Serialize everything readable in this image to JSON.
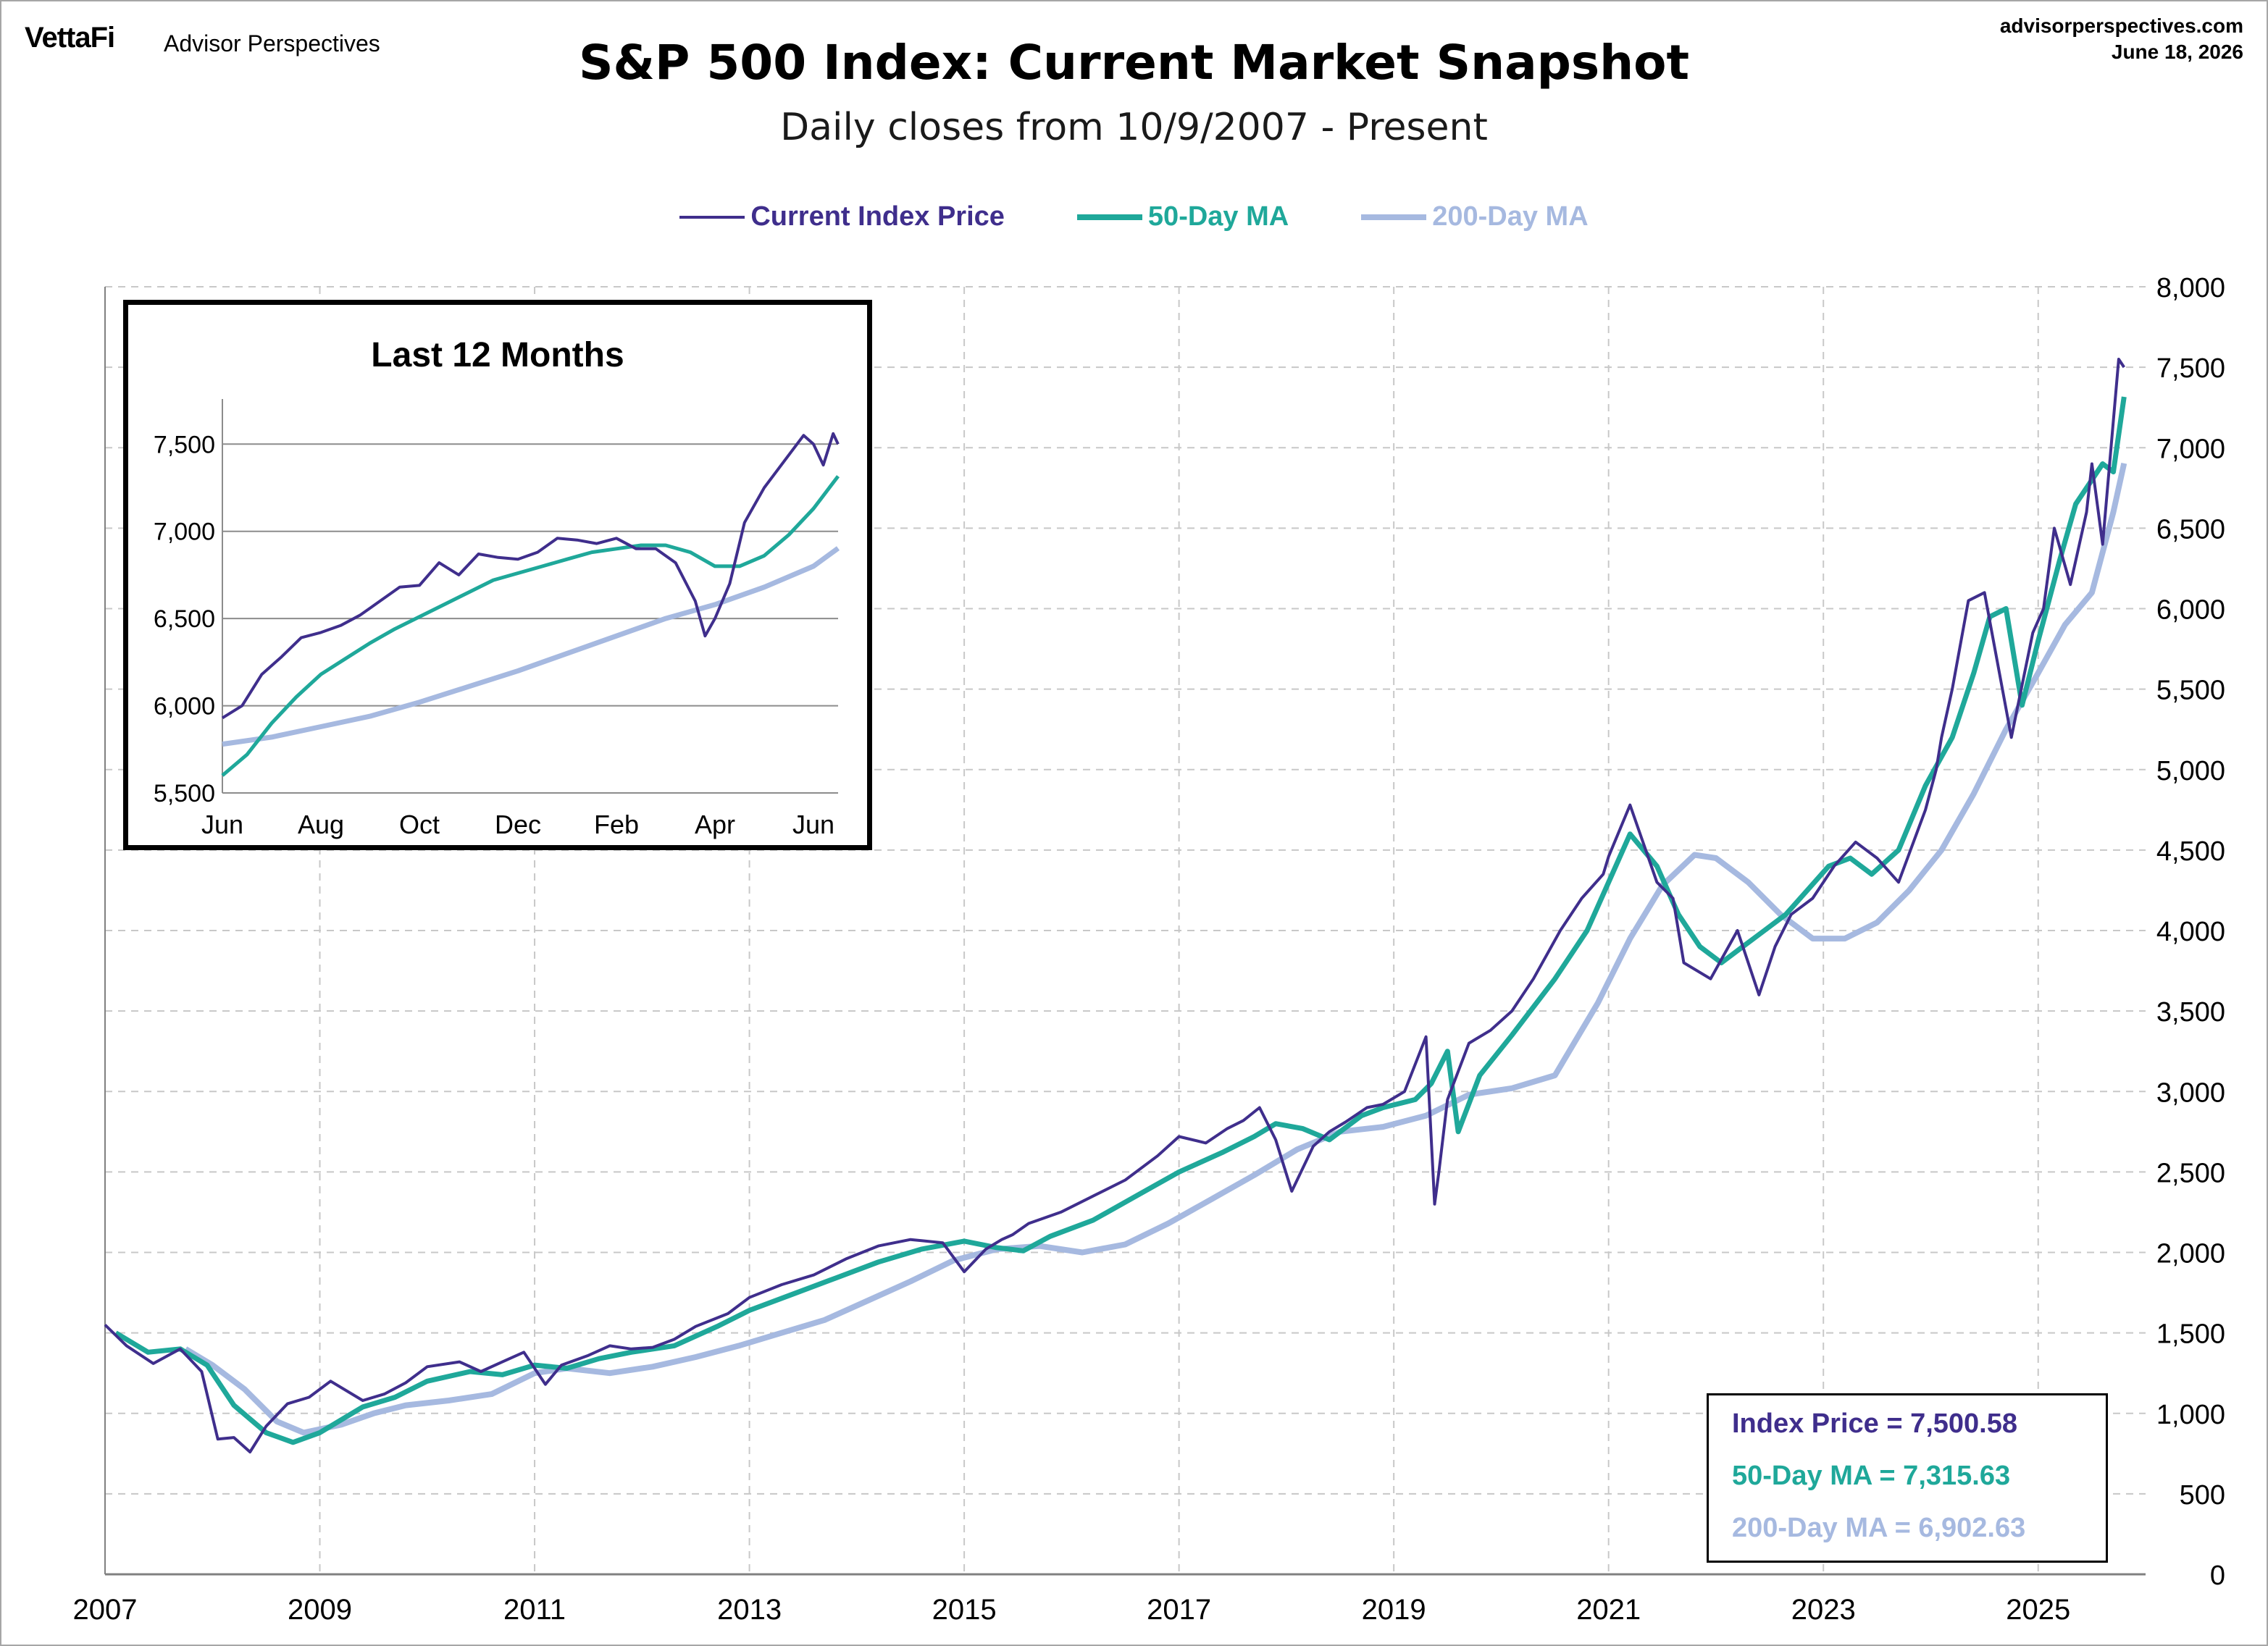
{
  "header": {
    "logo": "VettaFi",
    "tagline": "Advisor Perspectives",
    "site": "advisorperspectives.com",
    "date": "June 18, 2026",
    "title": "S&P 500 Index: Current Market Snapshot",
    "subtitle": "Daily closes from 10/9/2007 - Present"
  },
  "colors": {
    "price": "#3f2e8c",
    "ma50": "#1fa89a",
    "ma200": "#a6b9e0",
    "grid": "#c8c8c8",
    "text": "#000000"
  },
  "legend": [
    {
      "label": "Current Index Price",
      "color": "#3f2e8c"
    },
    {
      "label": "50-Day MA",
      "color": "#1fa89a"
    },
    {
      "label": "200-Day MA",
      "color": "#a6b9e0"
    }
  ],
  "values_box": {
    "price": "Index Price = 7,500.58",
    "ma50": "50-Day MA = 7,315.63",
    "ma200": "200-Day MA = 6,902.63"
  },
  "chart_data": [
    {
      "type": "line",
      "title": "S&P 500 Index: Current Market Snapshot",
      "subtitle": "Daily closes from 10/9/2007 - Present",
      "xlim": [
        2007.0,
        2026.0
      ],
      "ylim": [
        0,
        8000
      ],
      "x_ticks": [
        "2007",
        "2009",
        "2011",
        "2013",
        "2015",
        "2017",
        "2019",
        "2021",
        "2023",
        "2025"
      ],
      "y_ticks": [
        "0",
        "500",
        "1,000",
        "1,500",
        "2,000",
        "2,500",
        "3,000",
        "3,500",
        "4,000",
        "4,500",
        "5,000",
        "5,500",
        "6,000",
        "6,500",
        "7,000",
        "7,500",
        "8,000"
      ],
      "y_right_axis": true,
      "grid": "dashed vertical and horizontal",
      "series": [
        {
          "name": "Current Index Price",
          "x": [
            2007.0,
            2007.2,
            2007.45,
            2007.7,
            2007.9,
            2008.05,
            2008.2,
            2008.35,
            2008.5,
            2008.7,
            2008.9,
            2009.1,
            2009.4,
            2009.6,
            2009.8,
            2010.0,
            2010.3,
            2010.5,
            2010.7,
            2010.9,
            2011.1,
            2011.25,
            2011.5,
            2011.7,
            2011.9,
            2012.1,
            2012.3,
            2012.5,
            2012.8,
            2013.0,
            2013.3,
            2013.6,
            2013.9,
            2014.2,
            2014.5,
            2014.8,
            2015.0,
            2015.2,
            2015.35,
            2015.45,
            2015.6,
            2015.9,
            2016.2,
            2016.5,
            2016.8,
            2017.0,
            2017.25,
            2017.45,
            2017.6,
            2017.75,
            2017.9,
            2018.05,
            2018.25,
            2018.4,
            2018.55,
            2018.75,
            2018.9,
            2019.1,
            2019.3,
            2019.38,
            2019.42,
            2019.5,
            2019.7,
            2019.9,
            2020.1,
            2020.3,
            2020.55,
            2020.75,
            2020.95,
            2021.0,
            2021.2,
            2021.45,
            2021.6,
            2021.7,
            2021.95,
            2022.2,
            2022.4,
            2022.55,
            2022.7,
            2022.9,
            2023.1,
            2023.3,
            2023.5,
            2023.7,
            2023.95,
            2024.05,
            2024.1,
            2024.2,
            2024.35,
            2024.5,
            2024.75,
            2024.95,
            2025.05,
            2025.15,
            2025.3,
            2025.45,
            2025.5,
            2025.6,
            2025.75,
            2025.8
          ],
          "y": [
            1550,
            1420,
            1310,
            1400,
            1260,
            840,
            850,
            760,
            920,
            1060,
            1100,
            1200,
            1080,
            1120,
            1190,
            1290,
            1320,
            1260,
            1320,
            1380,
            1180,
            1300,
            1360,
            1420,
            1400,
            1410,
            1460,
            1540,
            1620,
            1720,
            1800,
            1860,
            1960,
            2040,
            2080,
            2060,
            1880,
            2020,
            2080,
            2110,
            2180,
            2250,
            2350,
            2450,
            2600,
            2720,
            2680,
            2770,
            2820,
            2900,
            2700,
            2380,
            2660,
            2750,
            2810,
            2900,
            2920,
            3000,
            3340,
            2300,
            2500,
            2950,
            3300,
            3380,
            3500,
            3700,
            4000,
            4200,
            4350,
            4460,
            4780,
            4300,
            4200,
            3800,
            3700,
            4000,
            3600,
            3900,
            4100,
            4200,
            4400,
            4550,
            4450,
            4300,
            4750,
            5000,
            5200,
            5500,
            6050,
            6100,
            5200,
            5850,
            6000,
            6500,
            6150,
            6600,
            6900,
            6400,
            7550,
            7500
          ]
        },
        {
          "name": "50-Day MA",
          "x": [
            2007.1,
            2007.4,
            2007.7,
            2007.95,
            2008.2,
            2008.5,
            2008.75,
            2009.0,
            2009.4,
            2009.7,
            2010.0,
            2010.4,
            2010.7,
            2011.0,
            2011.3,
            2011.6,
            2011.9,
            2012.3,
            2012.7,
            2013.0,
            2013.4,
            2013.8,
            2014.2,
            2014.6,
            2015.0,
            2015.3,
            2015.55,
            2015.8,
            2016.2,
            2016.6,
            2017.0,
            2017.4,
            2017.7,
            2017.9,
            2018.15,
            2018.4,
            2018.7,
            2018.9,
            2019.2,
            2019.35,
            2019.5,
            2019.6,
            2019.8,
            2020.1,
            2020.5,
            2020.8,
            2021.0,
            2021.2,
            2021.45,
            2021.65,
            2021.85,
            2022.05,
            2022.25,
            2022.45,
            2022.65,
            2022.85,
            2023.05,
            2023.25,
            2023.45,
            2023.7,
            2023.95,
            2024.2,
            2024.4,
            2024.55,
            2024.7,
            2024.85,
            2025.0,
            2025.2,
            2025.35,
            2025.5,
            2025.6,
            2025.7,
            2025.8
          ],
          "y": [
            1500,
            1380,
            1400,
            1300,
            1050,
            880,
            820,
            880,
            1040,
            1100,
            1200,
            1260,
            1240,
            1300,
            1280,
            1340,
            1380,
            1420,
            1540,
            1640,
            1740,
            1840,
            1940,
            2020,
            2070,
            2030,
            2010,
            2100,
            2200,
            2350,
            2500,
            2620,
            2720,
            2800,
            2770,
            2700,
            2850,
            2900,
            2950,
            3050,
            3250,
            2750,
            3100,
            3350,
            3700,
            4000,
            4300,
            4600,
            4400,
            4100,
            3900,
            3800,
            3900,
            4000,
            4100,
            4250,
            4400,
            4450,
            4350,
            4500,
            4900,
            5200,
            5600,
            5950,
            6000,
            5400,
            5800,
            6300,
            6650,
            6800,
            6900,
            6850,
            7316
          ]
        },
        {
          "name": "200-Day MA",
          "x": [
            2007.75,
            2008.0,
            2008.3,
            2008.6,
            2008.85,
            2009.2,
            2009.5,
            2009.8,
            2010.2,
            2010.6,
            2011.0,
            2011.3,
            2011.7,
            2012.1,
            2012.5,
            2012.9,
            2013.3,
            2013.7,
            2014.1,
            2014.5,
            2014.9,
            2015.3,
            2015.7,
            2016.1,
            2016.5,
            2016.9,
            2017.3,
            2017.7,
            2018.1,
            2018.5,
            2018.9,
            2019.3,
            2019.7,
            2020.1,
            2020.5,
            2020.9,
            2021.2,
            2021.5,
            2021.8,
            2022.0,
            2022.3,
            2022.6,
            2022.9,
            2023.2,
            2023.5,
            2023.8,
            2024.1,
            2024.4,
            2024.7,
            2025.0,
            2025.25,
            2025.5,
            2025.7,
            2025.8
          ],
          "y": [
            1400,
            1300,
            1150,
            950,
            880,
            930,
            1000,
            1050,
            1080,
            1120,
            1250,
            1280,
            1250,
            1290,
            1350,
            1420,
            1500,
            1580,
            1700,
            1820,
            1950,
            2020,
            2040,
            2000,
            2050,
            2180,
            2330,
            2480,
            2640,
            2750,
            2780,
            2850,
            2980,
            3020,
            3100,
            3550,
            3950,
            4280,
            4470,
            4450,
            4300,
            4100,
            3950,
            3950,
            4050,
            4250,
            4500,
            4850,
            5250,
            5600,
            5900,
            6100,
            6600,
            6903
          ]
        }
      ]
    },
    {
      "type": "line",
      "title": "Last 12 Months",
      "x_ticks": [
        "Jun",
        "Aug",
        "Oct",
        "Dec",
        "Feb",
        "Apr",
        "Jun"
      ],
      "y_ticks": [
        "5,500",
        "6,000",
        "6,500",
        "7,000",
        "7,500"
      ],
      "xlim": [
        0,
        12.5
      ],
      "ylim": [
        5500,
        7800
      ],
      "series": [
        {
          "name": "Current Index Price",
          "x": [
            0,
            0.4,
            0.8,
            1.2,
            1.6,
            2.0,
            2.4,
            2.8,
            3.2,
            3.6,
            4.0,
            4.4,
            4.8,
            5.2,
            5.6,
            6.0,
            6.4,
            6.8,
            7.2,
            7.6,
            8.0,
            8.4,
            8.8,
            9.2,
            9.6,
            9.8,
            10.0,
            10.3,
            10.6,
            11.0,
            11.4,
            11.8,
            12.0,
            12.2,
            12.4,
            12.5
          ],
          "y": [
            5930,
            6000,
            6180,
            6280,
            6390,
            6420,
            6460,
            6520,
            6600,
            6680,
            6690,
            6820,
            6750,
            6870,
            6850,
            6840,
            6880,
            6960,
            6950,
            6930,
            6960,
            6900,
            6900,
            6820,
            6600,
            6400,
            6500,
            6700,
            7050,
            7250,
            7400,
            7550,
            7500,
            7380,
            7560,
            7500
          ]
        },
        {
          "name": "50-Day MA",
          "x": [
            0,
            0.5,
            1.0,
            1.5,
            2.0,
            2.5,
            3.0,
            3.5,
            4.0,
            4.5,
            5.0,
            5.5,
            6.0,
            6.5,
            7.0,
            7.5,
            8.0,
            8.5,
            9.0,
            9.5,
            10.0,
            10.5,
            11.0,
            11.5,
            12.0,
            12.5
          ],
          "y": [
            5600,
            5720,
            5900,
            6050,
            6180,
            6270,
            6360,
            6440,
            6510,
            6580,
            6650,
            6720,
            6760,
            6800,
            6840,
            6880,
            6900,
            6920,
            6920,
            6880,
            6800,
            6800,
            6860,
            6980,
            7130,
            7316
          ]
        },
        {
          "name": "200-Day MA",
          "x": [
            0,
            1,
            2,
            3,
            4,
            5,
            6,
            7,
            8,
            9,
            10,
            11,
            12,
            12.5
          ],
          "y": [
            5780,
            5820,
            5880,
            5940,
            6020,
            6110,
            6200,
            6300,
            6400,
            6500,
            6580,
            6680,
            6800,
            6903
          ]
        }
      ]
    }
  ]
}
